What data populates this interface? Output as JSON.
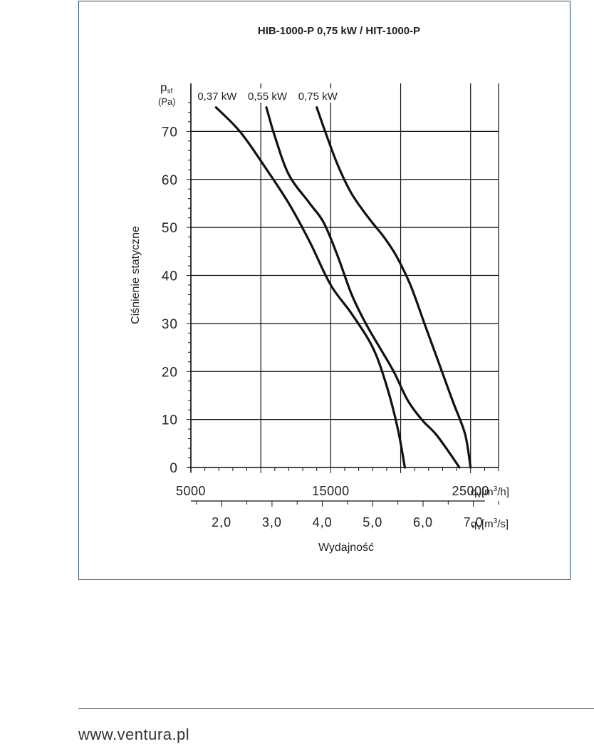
{
  "chart_data": {
    "type": "line",
    "title": "HIB-1000-P 0,75 kW / HIT-1000-P",
    "ylabel": "Ciśnienie statyczne",
    "xlabel": "Wydajność",
    "y_unit_symbol": "p",
    "y_unit_sub": "sf",
    "y_unit": "(Pa)",
    "x_unit_primary": {
      "q": "q",
      "sub": "V",
      "before": "[m",
      "sup": "3",
      "after": "/h]"
    },
    "x_unit_secondary": {
      "q": "q",
      "sub": "V",
      "before": "[m",
      "sup": "3",
      "after": "/s]"
    },
    "xlim": [
      5000,
      27000
    ],
    "ylim": [
      0,
      80
    ],
    "x_ticks_primary": [
      {
        "value": 5000,
        "label": "5000"
      },
      {
        "value": 15000,
        "label": "15000"
      },
      {
        "value": 25000,
        "label": "25000"
      }
    ],
    "x_ticks_secondary": [
      {
        "value": 2.0,
        "label": "2,0"
      },
      {
        "value": 3.0,
        "label": "3,0"
      },
      {
        "value": 4.0,
        "label": "4,0"
      },
      {
        "value": 5.0,
        "label": "5,0"
      },
      {
        "value": 6.0,
        "label": "6,0"
      },
      {
        "value": 7.0,
        "label": "7,0"
      }
    ],
    "y_ticks": [
      {
        "value": 0,
        "label": "0"
      },
      {
        "value": 10,
        "label": "10"
      },
      {
        "value": 20,
        "label": "20"
      },
      {
        "value": 30,
        "label": "30"
      },
      {
        "value": 40,
        "label": "40"
      },
      {
        "value": 50,
        "label": "50"
      },
      {
        "value": 60,
        "label": "60"
      },
      {
        "value": 70,
        "label": "70"
      }
    ],
    "grid": true,
    "series": [
      {
        "name": "0,37 kW",
        "x": [
          6800,
          8500,
          10200,
          12000,
          13500,
          15000,
          16500,
          18000,
          19000,
          19800,
          20300
        ],
        "y": [
          75,
          70,
          63,
          55,
          47,
          38,
          32,
          25,
          17,
          8,
          0
        ]
      },
      {
        "name": "0,55 kW",
        "x": [
          10400,
          11000,
          12000,
          13500,
          14500,
          15500,
          16500,
          17500,
          18500,
          19500,
          20500,
          21500,
          22500,
          23500,
          24200
        ],
        "y": [
          75,
          69,
          61,
          55,
          51,
          44,
          36,
          30,
          25,
          20,
          14,
          10,
          7,
          3,
          0
        ]
      },
      {
        "name": "0,75 kW",
        "x": [
          14000,
          14600,
          15500,
          16500,
          17700,
          18800,
          19700,
          20700,
          21700,
          22700,
          23700,
          24600,
          25000
        ],
        "y": [
          75,
          70,
          63,
          57,
          52,
          48,
          44,
          38,
          30,
          22,
          14,
          7,
          0
        ]
      }
    ]
  },
  "footer": {
    "url": "www.ventura.pl"
  }
}
